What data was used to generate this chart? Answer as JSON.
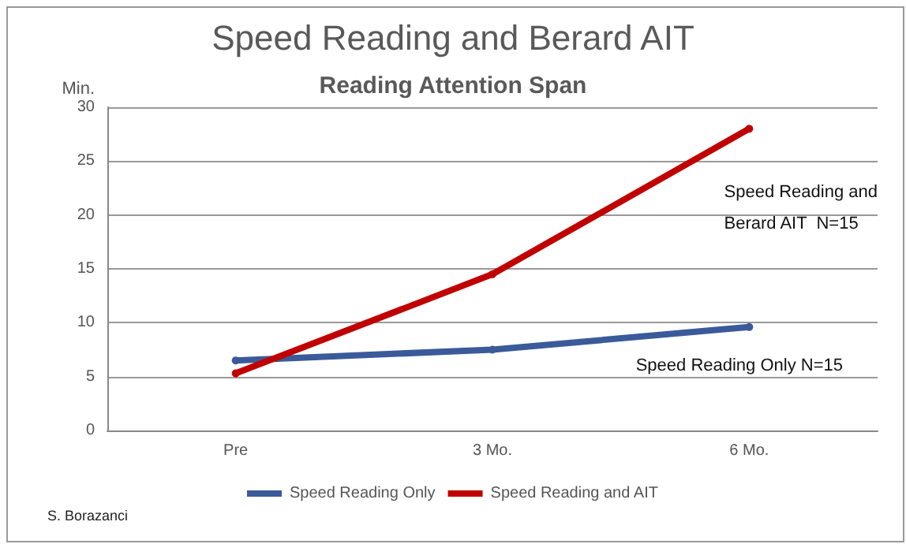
{
  "chart_data": {
    "type": "line",
    "title": "Speed Reading and Berard AIT",
    "subtitle": "Reading Attention Span",
    "ylabel": "Min.",
    "categories": [
      "Pre",
      "3 Mo.",
      "6 Mo."
    ],
    "series": [
      {
        "name": "Speed Reading Only",
        "color": "#3a5a9a",
        "values": [
          6.5,
          7.5,
          9.6
        ]
      },
      {
        "name": "Speed Reading and AIT",
        "color": "#c00000",
        "values": [
          5.3,
          14.5,
          28
        ]
      }
    ],
    "ylim": [
      0,
      30
    ],
    "yticks": [
      0,
      5,
      10,
      15,
      20,
      25,
      30
    ],
    "grid": "y",
    "legend": "bottom",
    "marker": "circle",
    "line_style": "solid",
    "annotations": [
      "Speed Reading and\nBerard AIT  N=15",
      "Speed Reading Only N=15",
      "S. Borazanci"
    ]
  }
}
